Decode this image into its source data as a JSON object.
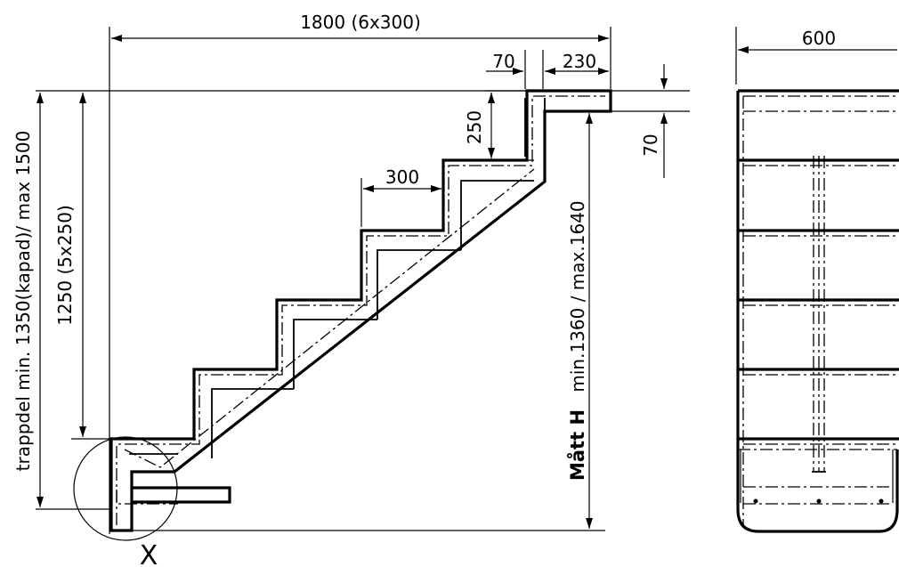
{
  "labels": {
    "total_width": "1800 (6x300)",
    "nose_70": "70",
    "nose_230": "230",
    "step_250": "250",
    "step_300": "300",
    "top_70": "70",
    "side_width": "600",
    "stringer_height": "1250 (5x250)",
    "cut_length": "trappdel min. 1350(kapad)/ max 1500",
    "height_range": "min.1360 / max.1640",
    "height_name": "Mått H",
    "detail_mark": "X"
  }
}
